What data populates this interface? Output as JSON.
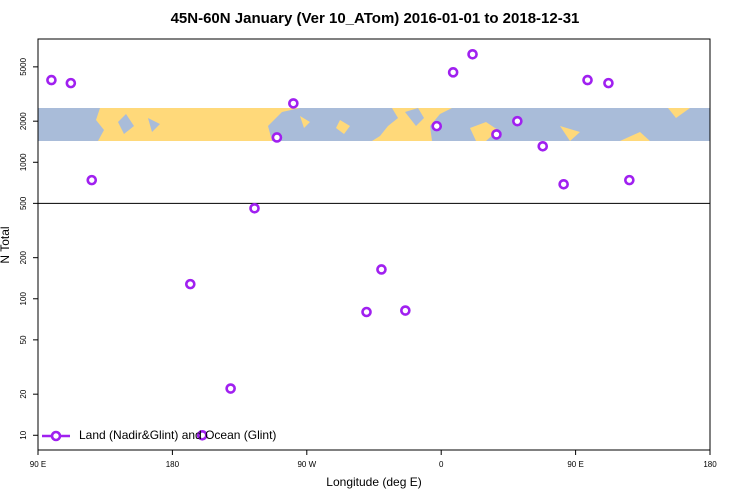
{
  "chart_data": {
    "type": "scatter",
    "title": "45N-60N January (Ver 10_ATom)   2016-01-01 to 2018-12-31",
    "x_label": "Longitude (deg E)",
    "y_label": "N Total",
    "log_y": true,
    "reference_line": 500,
    "xlim": [
      90,
      540
    ],
    "xticks": [
      {
        "value": 90,
        "label": "90 E"
      },
      180,
      {
        "value": 270,
        "label": "90 W"
      },
      {
        "value": 360,
        "label": "0"
      },
      {
        "value": 450,
        "label": "90 E"
      },
      {
        "value": 540,
        "label": "180"
      }
    ],
    "ylim": [
      7.8,
      8000
    ],
    "yticks": [
      10,
      20,
      50,
      100,
      200,
      500,
      1000,
      2000,
      5000
    ],
    "legend": "bottom-left",
    "series": [
      {
        "name": "Land (Nadir&Glint) and Ocean (Glint)",
        "color": "#a020f0",
        "x": [
          99,
          112,
          126,
          192,
          200,
          219,
          235,
          250,
          261,
          310,
          320,
          336,
          357,
          368,
          381,
          397,
          411,
          428,
          442,
          458,
          472,
          486
        ],
        "values": [
          4000,
          3800,
          740,
          128,
          10,
          22,
          460,
          1520,
          2700,
          80,
          164,
          82,
          1840,
          4560,
          6180,
          1600,
          2000,
          1310,
          690,
          4000,
          3800,
          740
        ]
      }
    ]
  }
}
